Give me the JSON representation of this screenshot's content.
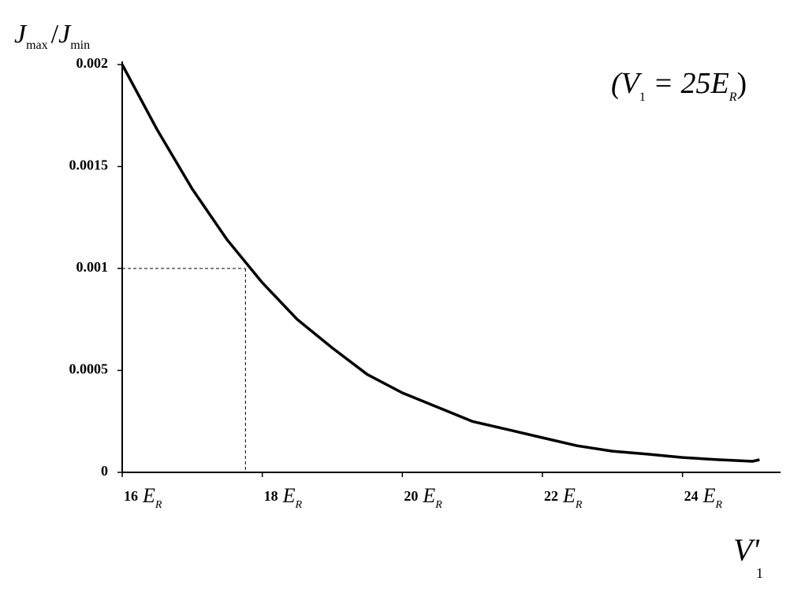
{
  "chart_data": {
    "type": "line",
    "ylabel": {
      "main1": "J",
      "sub1": "max",
      "sep": "/",
      "main2": "J",
      "sub2": "min"
    },
    "xlabel": {
      "main": "V'",
      "sub": "1"
    },
    "annotation": {
      "open": "(V",
      "sub1": "1",
      "mid": " = 25E",
      "sub2": "R",
      "close": ")"
    },
    "x_tick_unit": {
      "main": "E",
      "sub": "R"
    },
    "x": [
      16,
      16.5,
      17,
      17.5,
      18,
      18.5,
      19,
      19.5,
      20,
      20.5,
      21,
      21.5,
      22,
      22.5,
      23,
      23.5,
      24,
      24.5,
      25,
      25.1
    ],
    "series": [
      {
        "color": "#000000",
        "values": [
          0.002,
          0.00168,
          0.00139,
          0.00114,
          0.00093,
          0.00075,
          0.00061,
          0.00048,
          0.00039,
          0.00032,
          0.00025,
          0.00021,
          0.00017,
          0.00013,
          0.000104,
          8.9e-05,
          7.3e-05,
          6.2e-05,
          5.4e-05,
          6.2e-05
        ]
      }
    ],
    "reference": {
      "x": 17.76,
      "y": 0.001
    },
    "xlim": [
      16,
      25.4
    ],
    "ylim": [
      0,
      0.002
    ],
    "xticks": [
      16,
      18,
      20,
      22,
      24
    ],
    "yticks": [
      0,
      0.0005,
      0.001,
      0.0015,
      0.002
    ]
  }
}
